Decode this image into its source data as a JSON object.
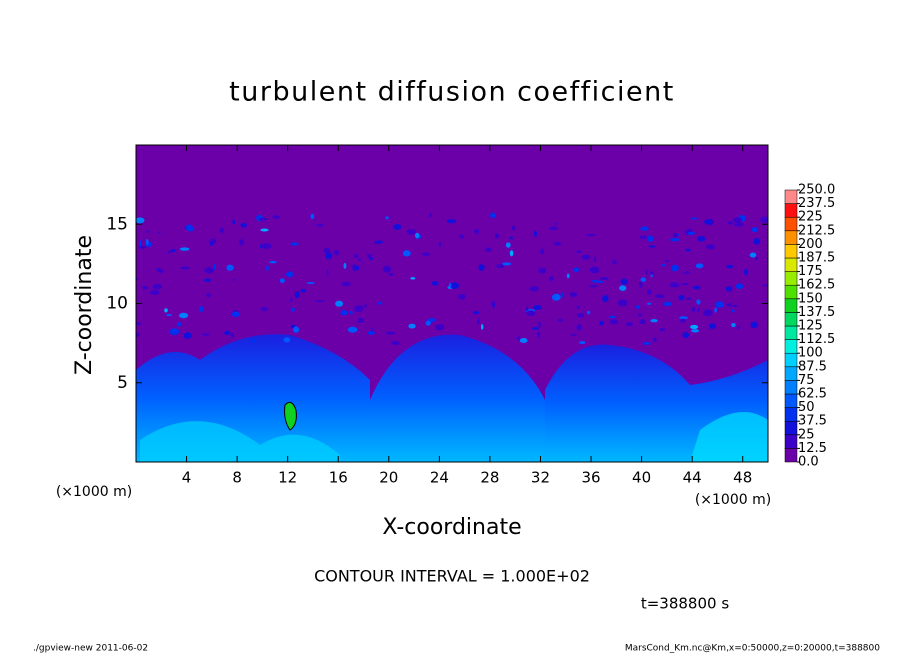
{
  "chart_data": {
    "type": "heatmap",
    "title": "turbulent diffusion coefficient",
    "x_label": "X-coordinate",
    "y_label": "Z-coordinate",
    "x_unit_left": "(×1000 m)",
    "x_unit_right": "(×1000 m)",
    "xlim": [
      0,
      50
    ],
    "xticks": [
      4,
      8,
      12,
      16,
      20,
      24,
      28,
      32,
      36,
      40,
      44,
      48
    ],
    "ylim": [
      0,
      20
    ],
    "yticks": [
      5,
      10,
      15
    ],
    "colorbar": {
      "levels": [
        {
          "value": 0,
          "label": "0.0"
        },
        12.5,
        25,
        37.5,
        50,
        62.5,
        75,
        87.5,
        100,
        112.5,
        125,
        137.5,
        150,
        162.5,
        175,
        187.5,
        200,
        212.5,
        225,
        237.5,
        {
          "value": 250,
          "label": "250.0"
        }
      ],
      "colors": [
        "#6c00a8",
        "#3c00c8",
        "#1410dc",
        "#0030f0",
        "#0058ff",
        "#0080ff",
        "#00a8ff",
        "#00d0ff",
        "#00f0e0",
        "#00e8a0",
        "#00d860",
        "#10d020",
        "#50e000",
        "#98ec00",
        "#d8e800",
        "#ffc800",
        "#ff9000",
        "#ff5000",
        "#ff1010",
        "#ff8888"
      ]
    },
    "contour_interval": "CONTOUR INTERVAL = 1.000E+02",
    "time_label": "t=388800 s",
    "footer_left": "./gpview-new  2011-06-02",
    "footer_right": "MarsCond_Km.nc@Km,x=0:50000,z=0:20000,t=388800"
  }
}
